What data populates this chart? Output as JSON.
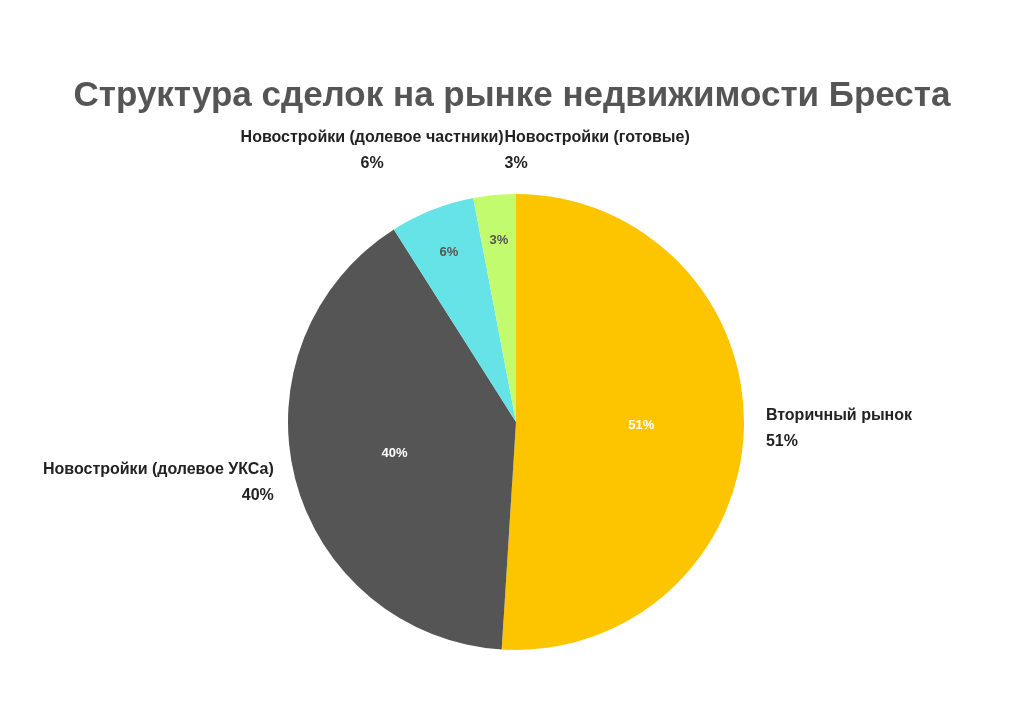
{
  "chart_data": {
    "type": "pie",
    "title": "Структура сделок на рынке недвижимости Бреста",
    "categories": [
      "Вторичный рынок",
      "Новостройки (долевое УКСа)",
      "Новостройки (долевое частники)",
      "Новостройки (готовые)"
    ],
    "values": [
      51,
      40,
      6,
      3
    ],
    "colors": [
      "#fcc500",
      "#555555",
      "#66e3e6",
      "#c2fc6e"
    ],
    "value_labels": [
      "51%",
      "40%",
      "6%",
      "3%"
    ]
  }
}
